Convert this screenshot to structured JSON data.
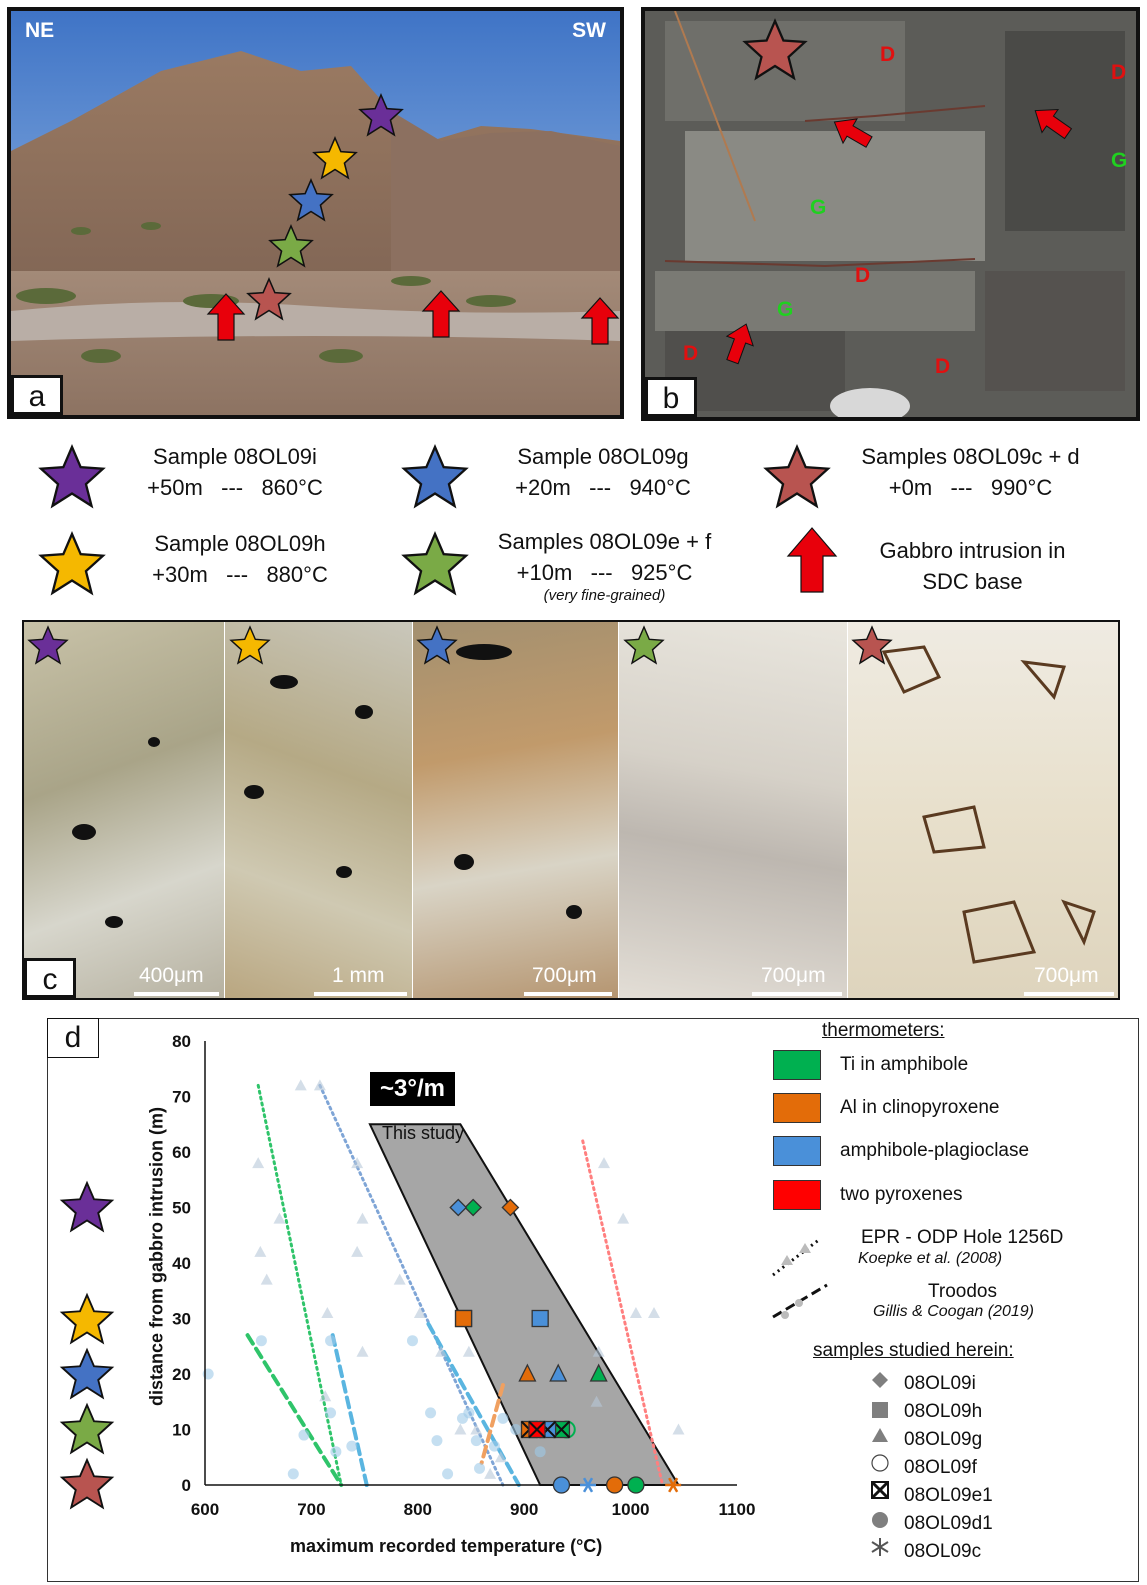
{
  "panel_a": {
    "letter": "a",
    "ne_label": "NE",
    "sw_label": "SW"
  },
  "panel_b": {
    "letter": "b",
    "labels": [
      "D",
      "D",
      "G",
      "G",
      "D",
      "G",
      "D",
      "D"
    ]
  },
  "legend": {
    "items": [
      {
        "color": "#6a2f98",
        "line1": "Sample 08OL09i",
        "line2": "+50m   ---   860°C"
      },
      {
        "color": "#4472c4",
        "line1": "Sample 08OL09g",
        "line2": "+20m   ---   940°C"
      },
      {
        "color": "#b85450",
        "line1": "Samples 08OL09c + d",
        "line2": "+0m   ---   990°C"
      },
      {
        "color": "#f5b800",
        "line1": "Sample 08OL09h",
        "line2": "+30m   ---   880°C"
      },
      {
        "color": "#7aaa46",
        "line1": "Samples 08OL09e + f",
        "line2": "+10m   ---   925°C",
        "note": "(very fine-grained)"
      }
    ],
    "arrow_label_1": "Gabbro intrusion in",
    "arrow_label_2": "SDC base"
  },
  "panel_c": {
    "letter": "c",
    "scales": [
      "400μm",
      "1 mm",
      "700μm",
      "700μm",
      "700μm"
    ]
  },
  "panel_d": {
    "letter": "d",
    "gradient_label": "~3°/m",
    "study_label": "This study",
    "thermometers_title": "thermometers:",
    "thermometers": [
      {
        "name": "Ti in amphibole",
        "color": "#00b050"
      },
      {
        "name": "Al in clinopyroxene",
        "color": "#e36c09"
      },
      {
        "name": "amphibole-plagioclase",
        "color": "#4a90d9"
      },
      {
        "name": "two pyroxenes",
        "color": "#ff0000"
      }
    ],
    "ref1_name": "EPR - ODP Hole 1256D",
    "ref1_cite": "Koepke et al. (2008)",
    "ref2_name": "Troodos",
    "ref2_cite": "Gillis & Coogan (2019)",
    "samples_title": "samples studied herein:",
    "samples": [
      "08OL09i",
      "08OL09h",
      "08OL09g",
      "08OL09f",
      "08OL09e1",
      "08OL09d1",
      "08OL09c"
    ]
  },
  "chart_data": {
    "type": "scatter",
    "xlabel": "maximum recorded temperature (°C)",
    "ylabel": "distance from gabbro intrusion (m)",
    "xlim": [
      600,
      1100
    ],
    "ylim": [
      0,
      80
    ],
    "xticks": [
      600,
      700,
      800,
      900,
      1000,
      1100
    ],
    "yticks": [
      0,
      10,
      20,
      30,
      40,
      50,
      60,
      70,
      80
    ],
    "band": {
      "polygon": [
        [
          755,
          65
        ],
        [
          840,
          65
        ],
        [
          1045,
          0
        ],
        [
          915,
          0
        ]
      ]
    },
    "series": [
      {
        "name": "Ti in amphibole",
        "color": "#00b050",
        "points": [
          {
            "x": 852,
            "y": 50,
            "marker": "diamond"
          },
          {
            "x": 843,
            "y": 30,
            "marker": "square"
          },
          {
            "x": 970,
            "y": 20,
            "marker": "triangle"
          },
          {
            "x": 940,
            "y": 10,
            "marker": "circle-open"
          },
          {
            "x": 935,
            "y": 10,
            "marker": "xbox"
          },
          {
            "x": 1005,
            "y": 0,
            "marker": "circle"
          }
        ]
      },
      {
        "name": "Al in clinopyroxene",
        "color": "#e36c09",
        "points": [
          {
            "x": 887,
            "y": 50,
            "marker": "diamond"
          },
          {
            "x": 843,
            "y": 30,
            "marker": "square"
          },
          {
            "x": 903,
            "y": 20,
            "marker": "triangle"
          },
          {
            "x": 905,
            "y": 10,
            "marker": "xbox"
          },
          {
            "x": 985,
            "y": 0,
            "marker": "circle"
          },
          {
            "x": 1040,
            "y": 0,
            "marker": "asterisk"
          }
        ]
      },
      {
        "name": "amphibole-plagioclase",
        "color": "#4a90d9",
        "points": [
          {
            "x": 838,
            "y": 50,
            "marker": "diamond"
          },
          {
            "x": 915,
            "y": 30,
            "marker": "square"
          },
          {
            "x": 932,
            "y": 20,
            "marker": "triangle"
          },
          {
            "x": 922,
            "y": 10,
            "marker": "xbox"
          },
          {
            "x": 935,
            "y": 0,
            "marker": "circle"
          },
          {
            "x": 960,
            "y": 0,
            "marker": "asterisk"
          }
        ]
      },
      {
        "name": "two pyroxenes",
        "color": "#ff0000",
        "points": [
          {
            "x": 912,
            "y": 10,
            "marker": "xbox"
          }
        ]
      },
      {
        "name": "Troodos (literature)",
        "color": "#9ec9e8",
        "points": [
          {
            "x": 603,
            "y": 20
          },
          {
            "x": 653,
            "y": 26
          },
          {
            "x": 683,
            "y": 2
          },
          {
            "x": 693,
            "y": 9
          },
          {
            "x": 718,
            "y": 13
          },
          {
            "x": 723,
            "y": 6
          },
          {
            "x": 738,
            "y": 7
          },
          {
            "x": 718,
            "y": 26
          },
          {
            "x": 795,
            "y": 26
          },
          {
            "x": 812,
            "y": 13
          },
          {
            "x": 818,
            "y": 8
          },
          {
            "x": 828,
            "y": 2
          },
          {
            "x": 842,
            "y": 12
          },
          {
            "x": 855,
            "y": 8
          },
          {
            "x": 872,
            "y": 7
          },
          {
            "x": 858,
            "y": 3
          },
          {
            "x": 880,
            "y": 12
          },
          {
            "x": 892,
            "y": 10
          },
          {
            "x": 915,
            "y": 6
          },
          {
            "x": 848,
            "y": 13
          }
        ]
      },
      {
        "name": "EPR - ODP Hole 1256D (literature)",
        "color": "#b8c8d8",
        "points": [
          {
            "x": 650,
            "y": 58
          },
          {
            "x": 652,
            "y": 42
          },
          {
            "x": 658,
            "y": 37
          },
          {
            "x": 670,
            "y": 48
          },
          {
            "x": 690,
            "y": 72
          },
          {
            "x": 708,
            "y": 72
          },
          {
            "x": 713,
            "y": 16
          },
          {
            "x": 715,
            "y": 31
          },
          {
            "x": 743,
            "y": 58
          },
          {
            "x": 748,
            "y": 48
          },
          {
            "x": 743,
            "y": 42
          },
          {
            "x": 748,
            "y": 24
          },
          {
            "x": 783,
            "y": 37
          },
          {
            "x": 802,
            "y": 31
          },
          {
            "x": 822,
            "y": 24
          },
          {
            "x": 848,
            "y": 24
          },
          {
            "x": 855,
            "y": 10
          },
          {
            "x": 878,
            "y": 5
          },
          {
            "x": 840,
            "y": 10
          },
          {
            "x": 868,
            "y": 2
          },
          {
            "x": 975,
            "y": 58
          },
          {
            "x": 993,
            "y": 48
          },
          {
            "x": 1005,
            "y": 31
          },
          {
            "x": 1022,
            "y": 31
          },
          {
            "x": 970,
            "y": 24
          },
          {
            "x": 968,
            "y": 15
          },
          {
            "x": 1045,
            "y": 10
          }
        ]
      }
    ],
    "trend_lines": [
      {
        "color": "#2fc46a",
        "style": "dotted",
        "points": [
          [
            650,
            72
          ],
          [
            728,
            0
          ]
        ]
      },
      {
        "color": "#7fa5d6",
        "style": "dotted",
        "points": [
          [
            708,
            72
          ],
          [
            880,
            0
          ]
        ]
      },
      {
        "color": "#ff7f7f",
        "style": "dotted",
        "points": [
          [
            955,
            62
          ],
          [
            1030,
            0
          ]
        ]
      },
      {
        "color": "#2fc46a",
        "style": "dashed",
        "points": [
          [
            640,
            27
          ],
          [
            728,
            0
          ]
        ]
      },
      {
        "color": "#5ab5e0",
        "style": "dashed",
        "points": [
          [
            720,
            27
          ],
          [
            752,
            0
          ]
        ]
      },
      {
        "color": "#5ab5e0",
        "style": "dashed",
        "points": [
          [
            810,
            29
          ],
          [
            895,
            0
          ]
        ]
      },
      {
        "color": "#f0a060",
        "style": "dashed",
        "points": [
          [
            880,
            18
          ],
          [
            860,
            4
          ]
        ]
      }
    ]
  }
}
